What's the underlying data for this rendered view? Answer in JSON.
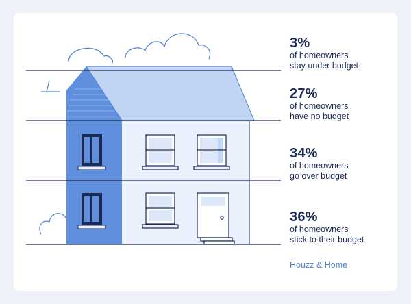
{
  "chart_data": {
    "type": "infographic",
    "segments": [
      {
        "value": 3,
        "value_label": "3%",
        "line1": "of homeowners",
        "line2": "stay under budget"
      },
      {
        "value": 27,
        "value_label": "27%",
        "line1": "of homeowners",
        "line2": "have no budget"
      },
      {
        "value": 34,
        "value_label": "34%",
        "line1": "of homeowners",
        "line2": "go over budget"
      },
      {
        "value": 36,
        "value_label": "36%",
        "line1": "of homeowners",
        "line2": "stick to their budget"
      }
    ]
  },
  "source": "Houzz & Home",
  "colors": {
    "stroke": "#1b2a55",
    "accent_dark": "#5f8fdd",
    "accent_mid": "#7ea6e6",
    "roof_light": "#bfd5f3",
    "wall_light": "#eaf1fc",
    "window_glass": "#dce8fa",
    "text_blue": "#4f7fd1"
  }
}
